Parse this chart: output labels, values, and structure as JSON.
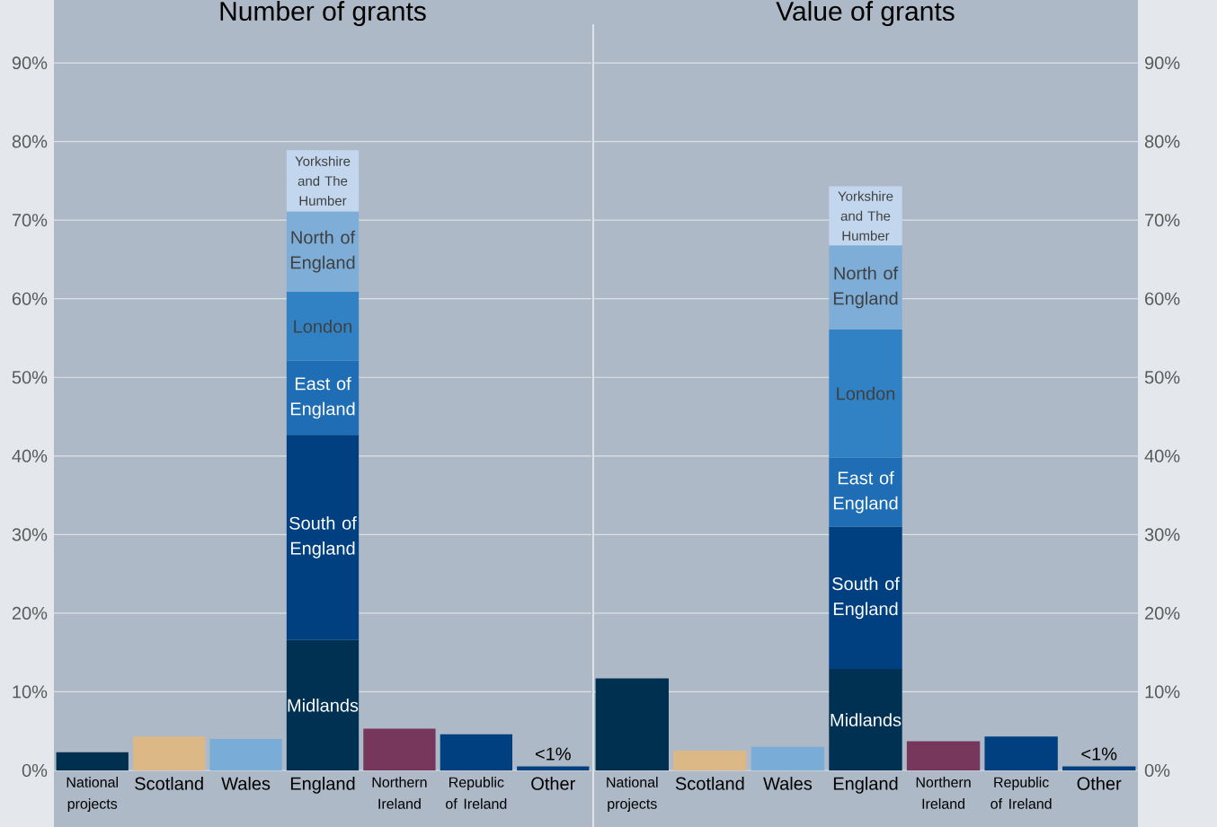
{
  "chart_data": [
    {
      "type": "bar",
      "title": "Number of grants",
      "stacked": true,
      "grid": "y",
      "categories": [
        "National projects",
        "Scotland",
        "Wales",
        "England",
        "Northern Ireland",
        "Republic of Ireland",
        "Other"
      ],
      "ylim": [
        0,
        98
      ],
      "yticks": [
        {
          "value": 0,
          "label": "0%"
        },
        {
          "value": 10,
          "label": "10%"
        },
        {
          "value": 20,
          "label": "20%"
        },
        {
          "value": 30,
          "label": "30%"
        },
        {
          "value": 40,
          "label": "40%"
        },
        {
          "value": 50,
          "label": "50%"
        },
        {
          "value": 60,
          "label": "60%"
        },
        {
          "value": 70,
          "label": "70%"
        },
        {
          "value": 80,
          "label": "80%"
        },
        {
          "value": 90,
          "label": "90%"
        }
      ],
      "series": [
        {
          "colors": [
            "#00304f",
            "#dbb886",
            "#7aacd8",
            "#003152",
            "#77375c",
            "#004080",
            "#004080"
          ],
          "values": [
            2.3,
            4.3,
            4.0,
            null,
            5.3,
            4.6,
            0.5
          ],
          "value_labels": [
            null,
            null,
            null,
            null,
            null,
            null,
            "<1%"
          ]
        },
        {
          "name": "Midlands",
          "color": "#003152",
          "values": [
            null,
            null,
            null,
            16.6,
            null,
            null,
            null
          ]
        },
        {
          "name": "South of England",
          "color": "#004080",
          "values": [
            null,
            null,
            null,
            26.1,
            null,
            null,
            null
          ]
        },
        {
          "name": "East of England",
          "color": "#1f6eb5",
          "values": [
            null,
            null,
            null,
            9.4,
            null,
            null,
            null
          ]
        },
        {
          "name": "London",
          "color": "#3182c4",
          "values": [
            null,
            null,
            null,
            8.8,
            null,
            null,
            null
          ]
        },
        {
          "name": "North of England",
          "color": "#7eaed8",
          "values": [
            null,
            null,
            null,
            10.2,
            null,
            null,
            null
          ]
        },
        {
          "name": "Yorkshire and The Humber",
          "color": "#c2d7ee",
          "values": [
            null,
            null,
            null,
            7.8,
            null,
            null,
            null
          ]
        }
      ]
    },
    {
      "type": "bar",
      "title": "Value of grants",
      "stacked": true,
      "grid": "y",
      "categories": [
        "National projects",
        "Scotland",
        "Wales",
        "England",
        "Northern Ireland",
        "Republic of Ireland",
        "Other"
      ],
      "ylim": [
        0,
        98
      ],
      "yticks": [
        {
          "value": 0,
          "label": "0%"
        },
        {
          "value": 10,
          "label": "10%"
        },
        {
          "value": 20,
          "label": "20%"
        },
        {
          "value": 30,
          "label": "30%"
        },
        {
          "value": 40,
          "label": "40%"
        },
        {
          "value": 50,
          "label": "50%"
        },
        {
          "value": 60,
          "label": "60%"
        },
        {
          "value": 70,
          "label": "70%"
        },
        {
          "value": 80,
          "label": "80%"
        },
        {
          "value": 90,
          "label": "90%"
        }
      ],
      "series": [
        {
          "colors": [
            "#00304f",
            "#dbb886",
            "#7aacd8",
            "#003152",
            "#77375c",
            "#004080",
            "#004080"
          ],
          "values": [
            11.7,
            2.5,
            3.0,
            null,
            3.7,
            4.3,
            0.5
          ],
          "value_labels": [
            null,
            null,
            null,
            null,
            null,
            null,
            "<1%"
          ]
        },
        {
          "name": "Midlands",
          "color": "#003152",
          "values": [
            null,
            null,
            null,
            12.9,
            null,
            null,
            null
          ]
        },
        {
          "name": "South of England",
          "color": "#004080",
          "values": [
            null,
            null,
            null,
            18.1,
            null,
            null,
            null
          ]
        },
        {
          "name": "East of England",
          "color": "#1f6eb5",
          "values": [
            null,
            null,
            null,
            8.8,
            null,
            null,
            null
          ]
        },
        {
          "name": "London",
          "color": "#3182c4",
          "values": [
            null,
            null,
            null,
            16.3,
            null,
            null,
            null
          ]
        },
        {
          "name": "North of England",
          "color": "#7eaed8",
          "values": [
            null,
            null,
            null,
            10.7,
            null,
            null,
            null
          ]
        },
        {
          "name": "Yorkshire and The Humber",
          "color": "#c2d7ee",
          "values": [
            null,
            null,
            null,
            7.5,
            null,
            null,
            null
          ]
        }
      ]
    }
  ]
}
